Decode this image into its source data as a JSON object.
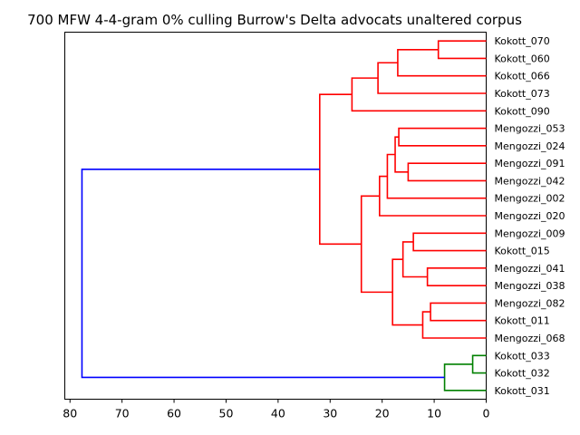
{
  "chart_data": {
    "type": "dendrogram",
    "title": "700 MFW 4-4-gram 0% culling Burrow's Delta advocats unaltered corpus",
    "orientation": "left",
    "x_axis": {
      "range": [
        81,
        0
      ],
      "ticks": [
        80,
        70,
        60,
        50,
        40,
        30,
        20,
        10,
        0
      ]
    },
    "leaves": [
      "Kokott_070",
      "Kokott_060",
      "Kokott_066",
      "Kokott_073",
      "Kokott_090",
      "Mengozzi_053",
      "Mengozzi_024",
      "Mengozzi_091",
      "Mengozzi_042",
      "Mengozzi_002",
      "Mengozzi_020",
      "Mengozzi_009",
      "Kokott_015",
      "Mengozzi_041",
      "Mengozzi_038",
      "Mengozzi_082",
      "Kokott_011",
      "Mengozzi_068",
      "Kokott_033",
      "Kokott_032",
      "Kokott_031"
    ],
    "colors": {
      "cluster_1": "#ff0000",
      "cluster_2": "#008000",
      "root": "#0000ff"
    },
    "merges": [
      {
        "id": "n1",
        "a": "L0",
        "b": "L1",
        "height": 9.2,
        "color": "#ff0000"
      },
      {
        "id": "n2",
        "a": "n1",
        "b": "L2",
        "height": 17.0,
        "color": "#ff0000"
      },
      {
        "id": "n3",
        "a": "n2",
        "b": "L3",
        "height": 20.8,
        "color": "#ff0000"
      },
      {
        "id": "n4",
        "a": "n3",
        "b": "L4",
        "height": 25.8,
        "color": "#ff0000"
      },
      {
        "id": "n5",
        "a": "L5",
        "b": "L6",
        "height": 16.8,
        "color": "#ff0000"
      },
      {
        "id": "n6",
        "a": "n5",
        "b": "L7",
        "height": 17.5,
        "color": "#ff0000"
      },
      {
        "id": "n7",
        "a": "L7b",
        "b": "L8",
        "height": 15.0,
        "color": "#ff0000"
      },
      {
        "id": "n8",
        "a": "n6",
        "b": "L9",
        "height": 19.0,
        "color": "#ff0000"
      },
      {
        "id": "n9",
        "a": "n8",
        "b": "L10",
        "height": 20.5,
        "color": "#ff0000"
      },
      {
        "id": "n10",
        "a": "L11",
        "b": "L12",
        "height": 14.0,
        "color": "#ff0000"
      },
      {
        "id": "n11",
        "a": "L13",
        "b": "L14",
        "height": 11.3,
        "color": "#ff0000"
      },
      {
        "id": "n12",
        "a": "n10",
        "b": "n11",
        "height": 16.0,
        "color": "#ff0000"
      },
      {
        "id": "n13",
        "a": "L15",
        "b": "L16",
        "height": 10.7,
        "color": "#ff0000"
      },
      {
        "id": "n14",
        "a": "n13",
        "b": "L17",
        "height": 12.2,
        "color": "#ff0000"
      },
      {
        "id": "n15",
        "a": "n12",
        "b": "n14",
        "height": 18.0,
        "color": "#ff0000"
      },
      {
        "id": "n16",
        "a": "n9",
        "b": "n15",
        "height": 24.0,
        "color": "#ff0000"
      },
      {
        "id": "n17",
        "a": "n4",
        "b": "n16",
        "height": 32.0,
        "color": "#ff0000"
      },
      {
        "id": "n18",
        "a": "L18",
        "b": "L19",
        "height": 2.6,
        "color": "#008000"
      },
      {
        "id": "n19",
        "a": "n18",
        "b": "L20",
        "height": 8.0,
        "color": "#008000"
      },
      {
        "id": "n20",
        "a": "n17",
        "b": "n19",
        "height": 77.7,
        "color": "#0000ff"
      }
    ]
  }
}
